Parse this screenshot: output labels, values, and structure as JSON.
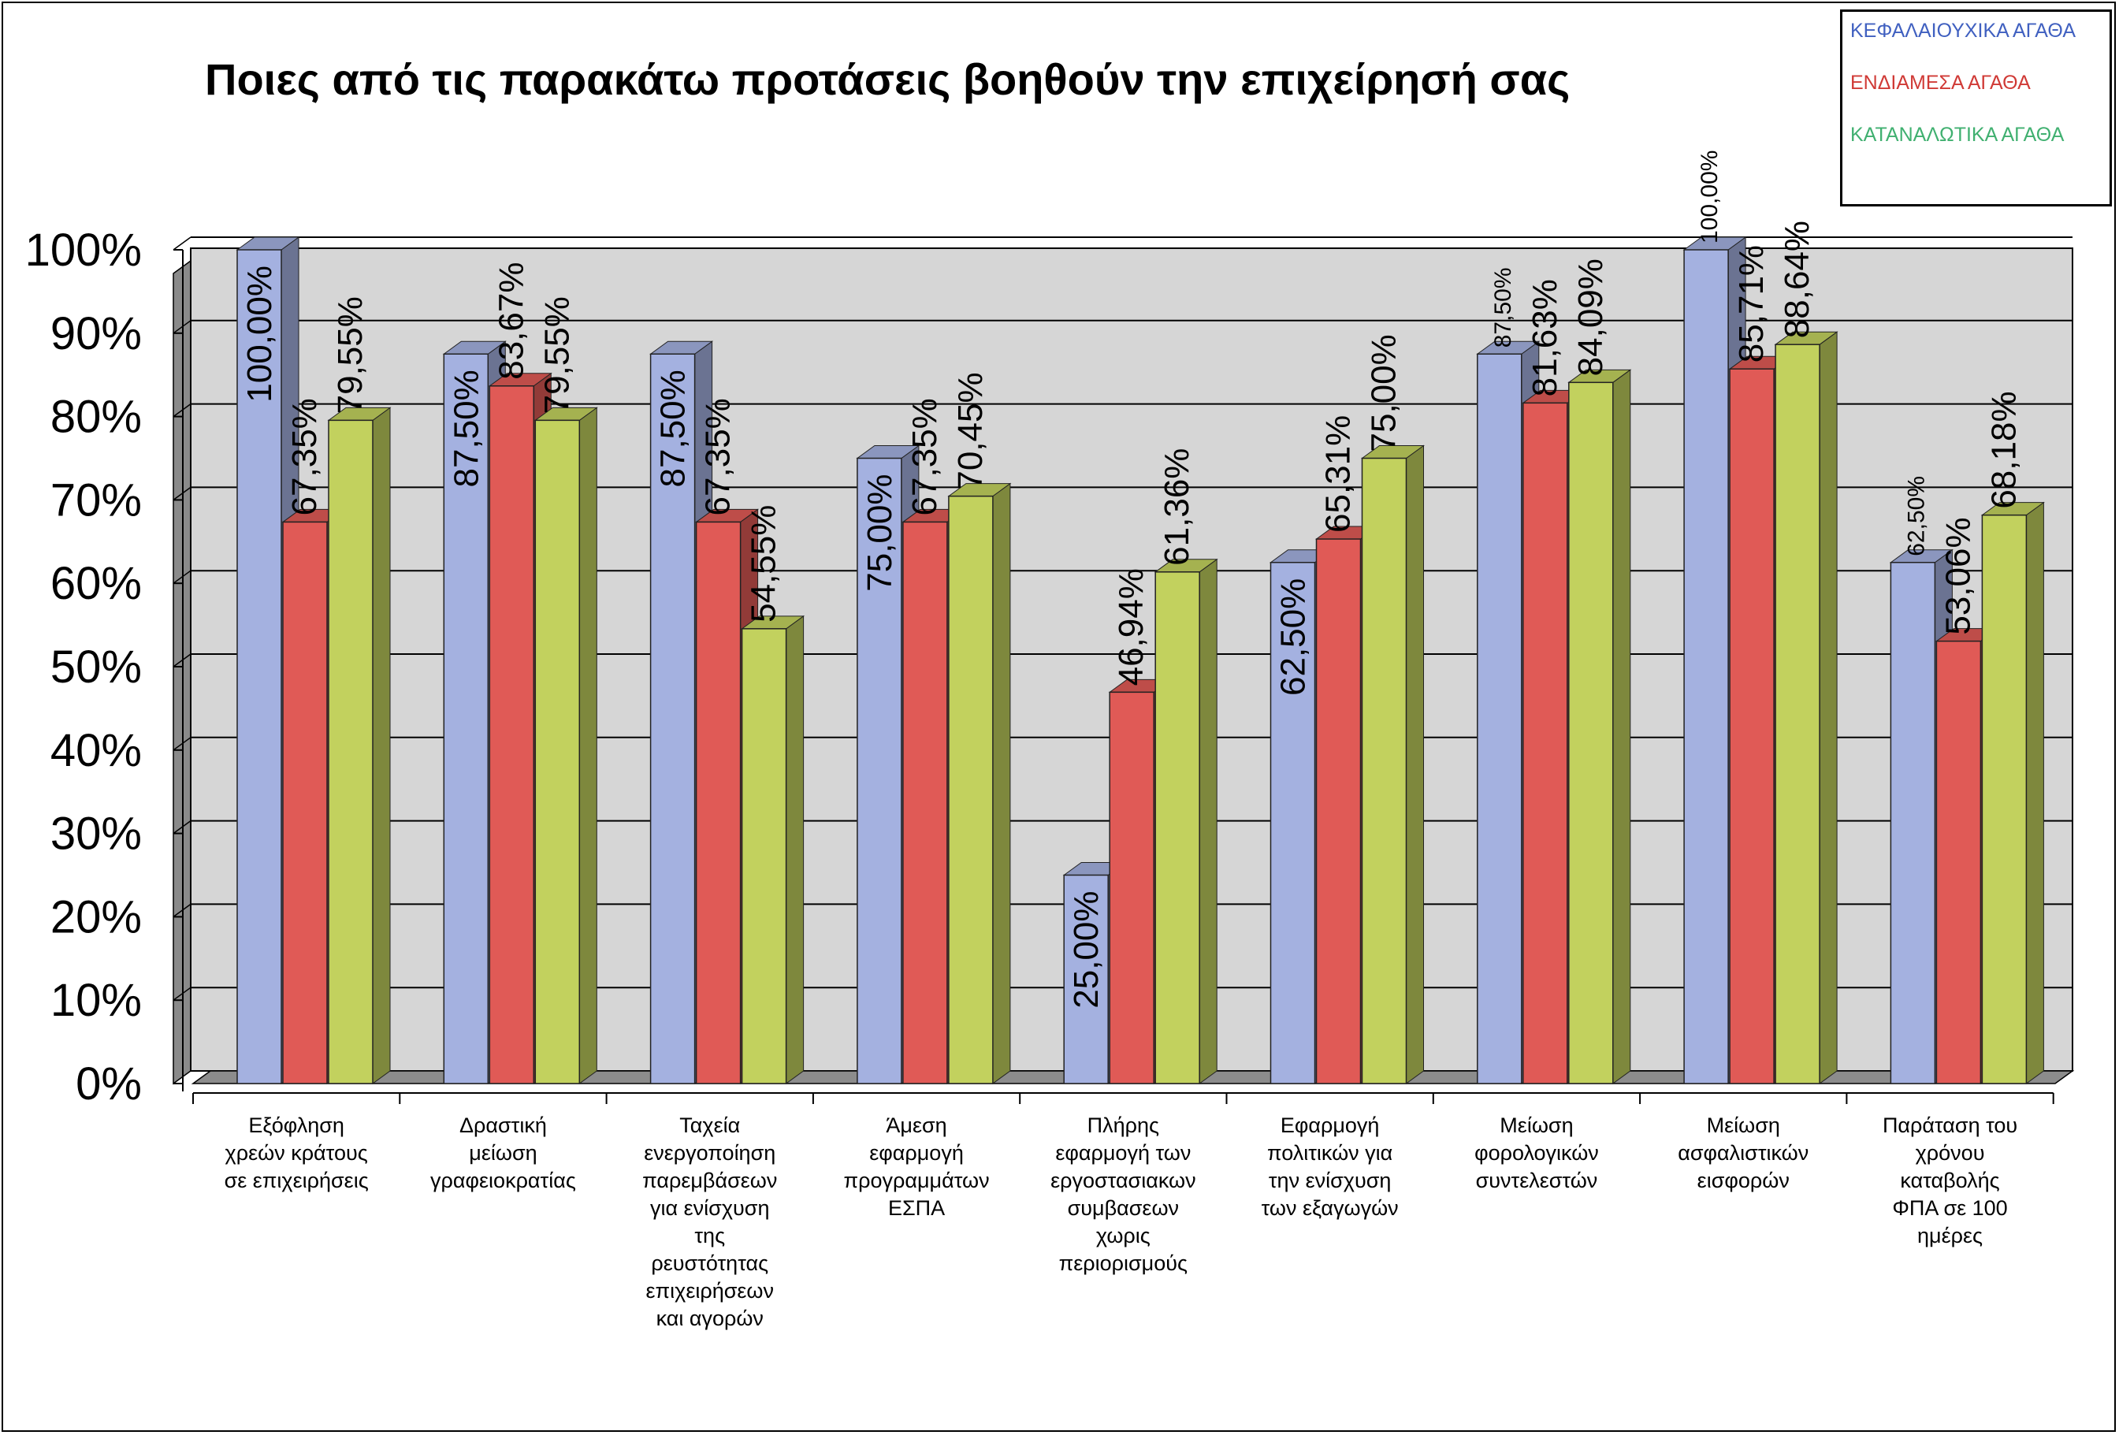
{
  "chart_data": {
    "type": "bar",
    "title": "Ποιες από τις παρακάτω προτάσεις βοηθούν την επιχείρησή σας",
    "xlabel": "",
    "ylabel": "",
    "ylim": [
      0,
      100
    ],
    "y_ticks": [
      "0%",
      "10%",
      "20%",
      "30%",
      "40%",
      "50%",
      "60%",
      "70%",
      "80%",
      "90%",
      "100%"
    ],
    "grid": true,
    "legend_position": "top-right",
    "categories": [
      "Εξόφληση χρεών κράτους σε επιχειρήσεις",
      "Δραστική μείωση γραφειοκρατίας",
      "Ταχεία ενεργοποίηση παρεμβάσεων για ενίσχυση της ρευστότητας επιχειρήσεων και αγορών",
      "Άμεση εφαρμογή προγραμμάτων ΕΣΠΑ",
      "Πλήρης εφαρμογή των εργοστασιακων συμβασεων χωρις περιορισμούς",
      "Εφαρμογή πολιτικών για την ενίσχυση των εξαγωγών",
      "Μείωση φορολογικών συντελεστών",
      "Μείωση ασφαλιστικών εισφορών",
      "Παράταση του χρόνου καταβολής ΦΠΑ σε 100 ημέρες"
    ],
    "category_lines": [
      [
        "Εξόφληση",
        "χρεών κράτους",
        "σε επιχειρήσεις"
      ],
      [
        "Δραστική",
        "μείωση",
        "γραφειοκρατίας"
      ],
      [
        "Ταχεία",
        "ενεργοποίηση",
        "παρεμβάσεων",
        "για ενίσχυση",
        "της",
        "ρευστότητας",
        "επιχειρήσεων",
        "και αγορών"
      ],
      [
        "Άμεση",
        "εφαρμογή",
        "προγραμμάτων",
        "ΕΣΠΑ"
      ],
      [
        "Πλήρης",
        "εφαρμογή των",
        "εργοστασιακων",
        "συμβασεων",
        "χωρις",
        "περιορισμούς"
      ],
      [
        "Εφαρμογή",
        "πολιτικών για",
        "την ενίσχυση",
        "των εξαγωγών"
      ],
      [
        "Μείωση",
        "φορολογικών",
        "συντελεστών"
      ],
      [
        "Μείωση",
        "ασφαλιστικών",
        "εισφορών"
      ],
      [
        "Παράταση του",
        "χρόνου",
        "καταβολής",
        "ΦΠΑ σε 100",
        "ημέρες"
      ]
    ],
    "series": [
      {
        "name": "ΚΕΦΑΛΑΙΟΥΧΙΚΑ ΑΓΑΘΑ",
        "color": "#A4B1E0",
        "legend_text_color": "#4060C0",
        "values": [
          100.0,
          87.5,
          87.5,
          75.0,
          25.0,
          62.5,
          87.5,
          100.0,
          62.5
        ],
        "labels": [
          "100,00%",
          "87,50%",
          "87,50%",
          "75,00%",
          "25,00%",
          "62,50%",
          "87,50%",
          "100,00%",
          "62,50%"
        ]
      },
      {
        "name": "ΕΝΔΙΑΜΕΣΑ ΑΓΑΘΑ",
        "color": "#E05A56",
        "legend_text_color": "#D03A36",
        "values": [
          67.35,
          83.67,
          67.35,
          67.35,
          46.94,
          65.31,
          81.63,
          85.71,
          53.06
        ],
        "labels": [
          "67,35%",
          "83,67%",
          "67,35%",
          "67,35%",
          "46,94%",
          "65,31%",
          "81,63%",
          "85,71%",
          "53,06%"
        ]
      },
      {
        "name": "ΚΑΤΑΝΑΛΩΤΙΚΑ ΑΓΑΘΑ",
        "color": "#C2D15E",
        "legend_text_color": "#40B070",
        "values": [
          79.55,
          79.55,
          54.55,
          70.45,
          61.36,
          75.0,
          84.09,
          88.64,
          68.18
        ],
        "labels": [
          "79,55%",
          "79,55%",
          "54,55%",
          "70,45%",
          "61,36%",
          "75,00%",
          "84,09%",
          "88,64%",
          "68,18%"
        ]
      }
    ]
  }
}
